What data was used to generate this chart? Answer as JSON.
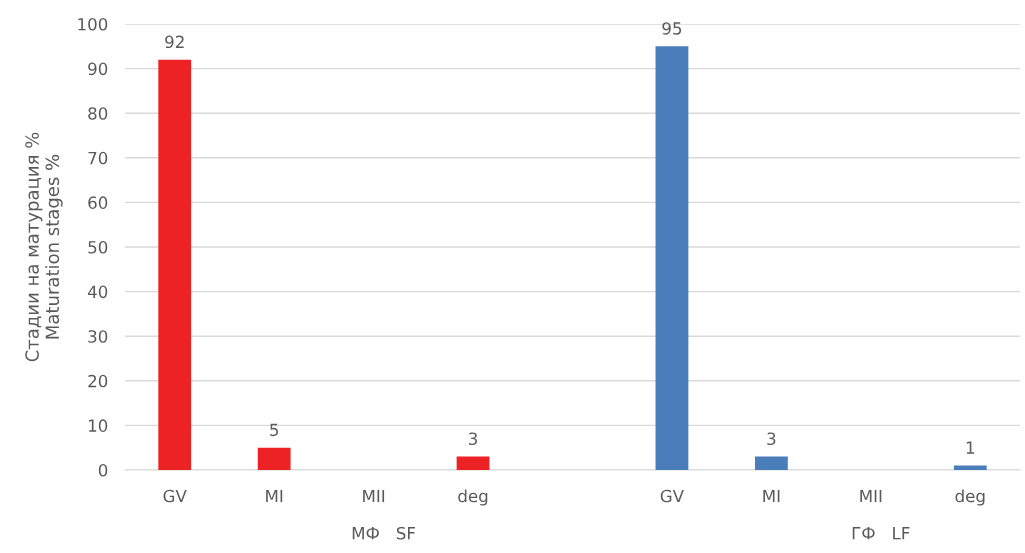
{
  "chart_data": {
    "type": "bar",
    "ylabel": "Стадии на матурация %\nMaturation stages %",
    "categories": [
      "GV",
      "MI",
      "MII",
      "deg",
      null,
      "GV",
      "MI",
      "MII",
      "deg"
    ],
    "series": [
      {
        "color": "#ed2224",
        "values": [
          92,
          5,
          null,
          3,
          null,
          null,
          null,
          null,
          null
        ]
      },
      {
        "color": "#4a7ebb",
        "values": [
          null,
          null,
          null,
          null,
          null,
          95,
          3,
          null,
          1
        ]
      }
    ],
    "annotations": [
      "МФ   SF",
      "ГФ   LF"
    ],
    "ylim": [
      0,
      100
    ],
    "yticks": [
      0,
      10,
      20,
      30,
      40,
      50,
      60,
      70,
      80,
      90,
      100
    ],
    "grid": "y",
    "data_labels": true,
    "legend": false
  }
}
